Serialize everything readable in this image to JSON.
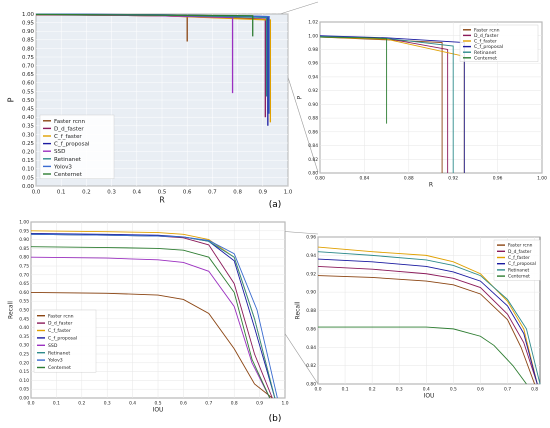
{
  "panel_labels": {
    "a": "(a)",
    "b": "(b)"
  },
  "colors": {
    "Faster rcnn": "#8b4513",
    "D_d_faster": "#8b1a5a",
    "C_f_faster": "#e0a000",
    "C_f_proposal": "#1a1aa0",
    "SSD": "#9b30c0",
    "Retinanet": "#2e8b8b",
    "Yolov3": "#3a6bd0",
    "Centernet": "#2e7d32"
  },
  "chart_data": [
    {
      "id": "a_main",
      "type": "line",
      "xlabel": "R",
      "ylabel": "P",
      "xlim": [
        0,
        1.0
      ],
      "ylim": [
        0,
        1.0
      ],
      "xticks": [
        "0.0",
        "0.1",
        "0.2",
        "0.3",
        "0.4",
        "0.5",
        "0.6",
        "0.7",
        "0.8",
        "0.9",
        "1.0"
      ],
      "yticks": [
        "0.00",
        "0.05",
        "0.10",
        "0.15",
        "0.20",
        "0.25",
        "0.30",
        "0.35",
        "0.40",
        "0.45",
        "0.50",
        "0.55",
        "0.60",
        "0.65",
        "0.70",
        "0.75",
        "0.80",
        "0.85",
        "0.90",
        "0.95",
        "1.00"
      ],
      "legend_position": "bottom-left",
      "series": [
        {
          "name": "Faster rcnn",
          "x": [
            0,
            0.3,
            0.6,
            0.6
          ],
          "y": [
            0.995,
            0.993,
            0.99,
            0.84
          ]
        },
        {
          "name": "D_d_faster",
          "x": [
            0,
            0.5,
            0.91,
            0.91
          ],
          "y": [
            0.998,
            0.99,
            0.97,
            0.4
          ]
        },
        {
          "name": "C_f_faster",
          "x": [
            0,
            0.5,
            0.93,
            0.93
          ],
          "y": [
            0.998,
            0.99,
            0.965,
            0.37
          ]
        },
        {
          "name": "C_f_proposal",
          "x": [
            0,
            0.5,
            0.92,
            0.92
          ],
          "y": [
            0.999,
            0.995,
            0.985,
            0.35
          ]
        },
        {
          "name": "SSD",
          "x": [
            0,
            0.5,
            0.78,
            0.78
          ],
          "y": [
            0.997,
            0.99,
            0.98,
            0.54
          ]
        },
        {
          "name": "Retinanet",
          "x": [
            0,
            0.5,
            0.915,
            0.915
          ],
          "y": [
            0.999,
            0.994,
            0.98,
            0.52
          ]
        },
        {
          "name": "Yolov3",
          "x": [
            0,
            0.5,
            0.925,
            0.925
          ],
          "y": [
            0.999,
            0.995,
            0.985,
            0.42
          ]
        },
        {
          "name": "Centernet",
          "x": [
            0,
            0.3,
            0.86,
            0.86
          ],
          "y": [
            0.998,
            0.995,
            0.99,
            0.87
          ]
        }
      ]
    },
    {
      "id": "a_zoom",
      "type": "line",
      "xlabel": "R",
      "ylabel": "P",
      "xlim": [
        0.8,
        1.0
      ],
      "ylim": [
        0.8,
        1.02
      ],
      "xticks": [
        "0.80",
        "0.84",
        "0.88",
        "0.92",
        "0.96",
        "1.00"
      ],
      "yticks": [
        "0.80",
        "0.82",
        "0.84",
        "0.86",
        "0.88",
        "0.90",
        "0.92",
        "0.94",
        "0.96",
        "0.98",
        "1.00",
        "1.02"
      ],
      "legend_position": "top-right",
      "series": [
        {
          "name": "Faster rcnn",
          "x": [
            0.8,
            0.86,
            0.91,
            0.91
          ],
          "y": [
            0.998,
            0.994,
            0.99,
            0.8
          ]
        },
        {
          "name": "D_d_faster",
          "x": [
            0.8,
            0.86,
            0.915,
            0.915
          ],
          "y": [
            0.999,
            0.996,
            0.98,
            0.8
          ]
        },
        {
          "name": "C_f_faster",
          "x": [
            0.8,
            0.86,
            0.93,
            0.93
          ],
          "y": [
            0.998,
            0.995,
            0.97,
            0.8
          ]
        },
        {
          "name": "C_f_proposal",
          "x": [
            0.8,
            0.86,
            0.93,
            0.93
          ],
          "y": [
            1.0,
            0.997,
            0.99,
            0.8
          ]
        },
        {
          "name": "Retinanet",
          "x": [
            0.8,
            0.86,
            0.92,
            0.92
          ],
          "y": [
            0.999,
            0.996,
            0.985,
            0.8
          ]
        },
        {
          "name": "Centernet",
          "x": [
            0.8,
            0.84,
            0.86,
            0.86
          ],
          "y": [
            0.998,
            0.997,
            0.996,
            0.872
          ]
        }
      ]
    },
    {
      "id": "b_main",
      "type": "line",
      "xlabel": "IOU",
      "ylabel": "Recall",
      "xlim": [
        0,
        1.0
      ],
      "ylim": [
        0,
        1.0
      ],
      "xticks": [
        "0.0",
        "0.1",
        "0.2",
        "0.3",
        "0.4",
        "0.5",
        "0.6",
        "0.7",
        "0.8",
        "0.9",
        "1.0"
      ],
      "yticks": [
        "0.00",
        "0.05",
        "0.10",
        "0.15",
        "0.20",
        "0.25",
        "0.30",
        "0.35",
        "0.40",
        "0.45",
        "0.50",
        "0.55",
        "0.60",
        "0.65",
        "0.70",
        "0.75",
        "0.80",
        "0.85",
        "0.90",
        "0.95",
        "1.00"
      ],
      "legend_position": "bottom-left",
      "series": [
        {
          "name": "Faster rcnn",
          "x": [
            0,
            0.3,
            0.5,
            0.6,
            0.7,
            0.8,
            0.88,
            0.95
          ],
          "y": [
            0.6,
            0.595,
            0.585,
            0.56,
            0.48,
            0.28,
            0.08,
            0.0
          ]
        },
        {
          "name": "D_d_faster",
          "x": [
            0,
            0.3,
            0.5,
            0.6,
            0.7,
            0.8,
            0.88,
            0.95
          ],
          "y": [
            0.93,
            0.925,
            0.92,
            0.91,
            0.87,
            0.65,
            0.25,
            0.0
          ]
        },
        {
          "name": "C_f_faster",
          "x": [
            0,
            0.3,
            0.5,
            0.6,
            0.7,
            0.8,
            0.88,
            0.96
          ],
          "y": [
            0.95,
            0.945,
            0.94,
            0.93,
            0.9,
            0.8,
            0.45,
            0.0
          ]
        },
        {
          "name": "C_f_proposal",
          "x": [
            0,
            0.3,
            0.5,
            0.6,
            0.7,
            0.8,
            0.88,
            0.96
          ],
          "y": [
            0.935,
            0.93,
            0.925,
            0.915,
            0.89,
            0.78,
            0.4,
            0.0
          ]
        },
        {
          "name": "SSD",
          "x": [
            0,
            0.3,
            0.5,
            0.6,
            0.7,
            0.8,
            0.87,
            0.94
          ],
          "y": [
            0.8,
            0.795,
            0.785,
            0.77,
            0.72,
            0.52,
            0.2,
            0.0
          ]
        },
        {
          "name": "Retinanet",
          "x": [
            0,
            0.3,
            0.5,
            0.6,
            0.7,
            0.8,
            0.88,
            0.96
          ],
          "y": [
            0.93,
            0.925,
            0.92,
            0.915,
            0.89,
            0.8,
            0.45,
            0.0
          ]
        },
        {
          "name": "Yolov3",
          "x": [
            0,
            0.3,
            0.5,
            0.6,
            0.7,
            0.8,
            0.89,
            0.97
          ],
          "y": [
            0.93,
            0.925,
            0.92,
            0.915,
            0.895,
            0.82,
            0.5,
            0.0
          ]
        },
        {
          "name": "Centernet",
          "x": [
            0,
            0.3,
            0.5,
            0.6,
            0.7,
            0.8,
            0.87,
            0.94
          ],
          "y": [
            0.86,
            0.855,
            0.85,
            0.84,
            0.8,
            0.6,
            0.22,
            0.0
          ]
        }
      ]
    },
    {
      "id": "b_zoom",
      "type": "line",
      "xlabel": "IOU",
      "ylabel": "Recall",
      "xlim": [
        0.0,
        0.82
      ],
      "ylim": [
        0.8,
        0.96
      ],
      "xticks": [
        "0.0",
        "0.1",
        "0.2",
        "0.3",
        "0.4",
        "0.5",
        "0.6",
        "0.7",
        "0.8"
      ],
      "yticks": [
        "0.80",
        "0.82",
        "0.84",
        "0.86",
        "0.88",
        "0.90",
        "0.92",
        "0.94",
        "0.96"
      ],
      "legend_position": "top-right",
      "series": [
        {
          "name": "Faster rcnn",
          "x": [
            0,
            0.2,
            0.4,
            0.5,
            0.6,
            0.7,
            0.75,
            0.8
          ],
          "y": [
            0.918,
            0.916,
            0.912,
            0.908,
            0.898,
            0.87,
            0.84,
            0.8
          ]
        },
        {
          "name": "D_d_faster",
          "x": [
            0,
            0.2,
            0.4,
            0.5,
            0.6,
            0.7,
            0.76,
            0.81
          ],
          "y": [
            0.928,
            0.925,
            0.92,
            0.915,
            0.905,
            0.876,
            0.845,
            0.8
          ]
        },
        {
          "name": "C_f_faster",
          "x": [
            0,
            0.2,
            0.4,
            0.5,
            0.6,
            0.7,
            0.76,
            0.81
          ],
          "y": [
            0.949,
            0.944,
            0.94,
            0.933,
            0.92,
            0.89,
            0.86,
            0.8
          ]
        },
        {
          "name": "C_f_proposal",
          "x": [
            0,
            0.2,
            0.4,
            0.5,
            0.6,
            0.7,
            0.76,
            0.81
          ],
          "y": [
            0.936,
            0.933,
            0.928,
            0.922,
            0.912,
            0.885,
            0.855,
            0.8
          ]
        },
        {
          "name": "Retinanet",
          "x": [
            0,
            0.2,
            0.4,
            0.5,
            0.6,
            0.7,
            0.77,
            0.82
          ],
          "y": [
            0.944,
            0.94,
            0.935,
            0.929,
            0.918,
            0.892,
            0.86,
            0.8
          ]
        },
        {
          "name": "Centernet",
          "x": [
            0,
            0.2,
            0.4,
            0.5,
            0.6,
            0.65,
            0.72,
            0.77
          ],
          "y": [
            0.862,
            0.862,
            0.862,
            0.86,
            0.852,
            0.842,
            0.82,
            0.8
          ]
        }
      ]
    }
  ]
}
